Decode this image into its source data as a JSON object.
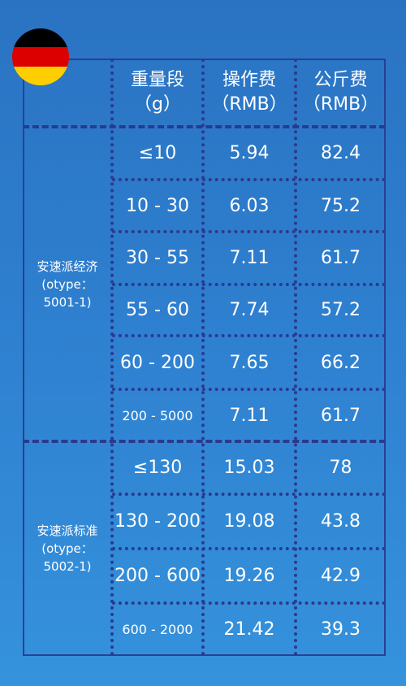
{
  "colors": {
    "flag": [
      "#000000",
      "#dd0000",
      "#ffce00"
    ],
    "grid_line": "#2a3a8f"
  },
  "icons": {
    "flag": "germany-flag-icon"
  },
  "header": {
    "weight_line1": "重量段",
    "weight_line2": "（g）",
    "op_fee_line1": "操作费",
    "op_fee_line2": "（RMB）",
    "kg_fee_line1": "公斤费",
    "kg_fee_line2": "（RMB）"
  },
  "groups": [
    {
      "name_line1": "安速派经济",
      "name_line2": "(otype：",
      "name_line3": "5001-1)",
      "rows": [
        {
          "weight": "≤10",
          "op_fee": "5.94",
          "kg_fee": "82.4"
        },
        {
          "weight": "10 - 30",
          "op_fee": "6.03",
          "kg_fee": "75.2"
        },
        {
          "weight": "30 - 55",
          "op_fee": "7.11",
          "kg_fee": "61.7"
        },
        {
          "weight": "55 - 60",
          "op_fee": "7.74",
          "kg_fee": "57.2"
        },
        {
          "weight": "60 - 200",
          "op_fee": "7.65",
          "kg_fee": "66.2"
        },
        {
          "weight": "200 - 5000",
          "op_fee": "7.11",
          "kg_fee": "61.7"
        }
      ]
    },
    {
      "name_line1": "安速派标准",
      "name_line2": "(otype：",
      "name_line3": "5002-1)",
      "rows": [
        {
          "weight": "≤130",
          "op_fee": "15.03",
          "kg_fee": "78"
        },
        {
          "weight": "130 - 200",
          "op_fee": "19.08",
          "kg_fee": "43.8"
        },
        {
          "weight": "200 - 600",
          "op_fee": "19.26",
          "kg_fee": "42.9"
        },
        {
          "weight": "600 - 2000",
          "op_fee": "21.42",
          "kg_fee": "39.3"
        }
      ]
    }
  ]
}
